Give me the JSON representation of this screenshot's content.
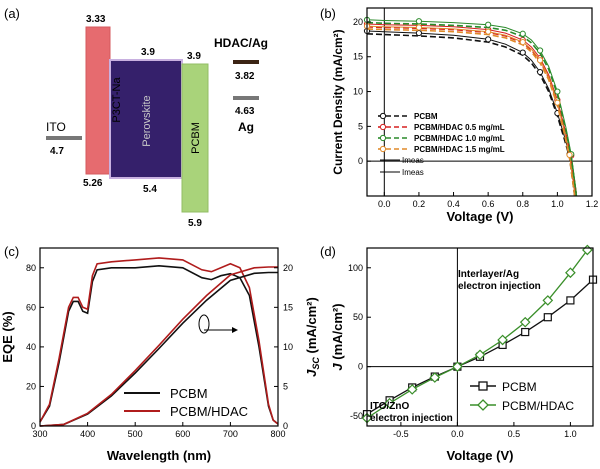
{
  "panels": {
    "a": {
      "label": "(a)",
      "levels": {
        "ito": {
          "name": "ITO",
          "value": "4.7"
        },
        "p3ct": {
          "name": "P3CT-Na",
          "top": "3.33",
          "bottom": "5.26"
        },
        "perovskite": {
          "name": "Perovskite",
          "top": "3.9",
          "bottom": "5.4"
        },
        "pcbm": {
          "name": "PCBM",
          "top": "3.9",
          "bottom": "5.9"
        },
        "hdac": {
          "name": "HDAC/Ag",
          "value": "3.82"
        },
        "ag": {
          "name": "Ag",
          "value": "4.63"
        }
      },
      "colors": {
        "p3ct": "#e66b6f",
        "perovskite": "#35206b",
        "pcbm": "#a9d37a",
        "electrode": "#777777",
        "hdac": "#3b2414"
      }
    },
    "b": {
      "label": "(b)",
      "xlabel": "Voltage (V)",
      "ylabel": "Current Density (mA/cm²)",
      "xticks": [
        "0.0",
        "0.2",
        "0.4",
        "0.6",
        "0.8",
        "1.0",
        "1.2"
      ],
      "yticks": [
        "0",
        "5",
        "10",
        "15",
        "20"
      ],
      "legend": [
        "PCBM",
        "PCBM/HDAC 0.5 mg/mL",
        "PCBM/HDAC 1.0 mg/mL",
        "PCBM/HDAC 1.5 mg/mL"
      ],
      "imeas": [
        "Imeas",
        "Imeas"
      ]
    },
    "c": {
      "label": "(c)",
      "xlabel": "Wavelength (nm)",
      "ylabel_left": "EQE (%)",
      "ylabel_right": "J",
      "ylabel_right_sub": "SC",
      "ylabel_right_unit": " (mA/cm²)",
      "xticks": [
        "300",
        "400",
        "500",
        "600",
        "700",
        "800"
      ],
      "yticks_left": [
        "0",
        "20",
        "40",
        "60",
        "80"
      ],
      "yticks_right": [
        "0",
        "5",
        "10",
        "15",
        "20"
      ],
      "legend": [
        "PCBM",
        "PCBM/HDAC"
      ]
    },
    "d": {
      "label": "(d)",
      "xlabel": "Voltage (V)",
      "ylabel": "J",
      "ylabel_unit": " (mA/cm²)",
      "xticks": [
        "-0.5",
        "0.0",
        "0.5",
        "1.0"
      ],
      "yticks": [
        "-50",
        "0",
        "50",
        "100"
      ],
      "annot_top": [
        "Interlayer/Ag",
        "electron injection"
      ],
      "annot_bottom": [
        "ITO/ZnO",
        "electron injection"
      ],
      "legend": [
        "PCBM",
        "PCBM/HDAC"
      ]
    }
  },
  "chart_data": [
    {
      "type": "line",
      "panel": "b",
      "xlim": [
        -0.1,
        1.2
      ],
      "ylim": [
        -5,
        22
      ],
      "series": [
        {
          "name": "PCBM",
          "color": "#111111",
          "dash": "dashed",
          "x": [
            -0.1,
            0,
            0.2,
            0.4,
            0.6,
            0.7,
            0.8,
            0.85,
            0.9,
            0.95,
            1.0,
            1.04,
            1.07,
            1.1
          ],
          "y": [
            18.3,
            18.2,
            18.0,
            17.7,
            17.1,
            16.4,
            15.2,
            14.1,
            12.4,
            10.0,
            6.5,
            3.2,
            0.6,
            -5
          ]
        },
        {
          "name": "PCBM/HDAC 0.5 mg/mL",
          "color": "#d62020",
          "dash": "dashed",
          "x": [
            -0.1,
            0,
            0.2,
            0.4,
            0.6,
            0.7,
            0.8,
            0.85,
            0.9,
            0.95,
            1.0,
            1.05,
            1.08,
            1.11
          ],
          "y": [
            19.3,
            19.2,
            19.1,
            18.9,
            18.5,
            18.0,
            17.0,
            16.0,
            14.4,
            12.0,
            8.4,
            3.6,
            0.4,
            -5
          ]
        },
        {
          "name": "PCBM/HDAC 1.0 mg/mL",
          "color": "#2a8a2a",
          "dash": "dashed",
          "x": [
            -0.1,
            0,
            0.2,
            0.4,
            0.6,
            0.7,
            0.8,
            0.85,
            0.9,
            0.95,
            1.0,
            1.05,
            1.08,
            1.11
          ],
          "y": [
            19.9,
            19.8,
            19.7,
            19.5,
            19.2,
            18.8,
            17.9,
            17.0,
            15.5,
            13.2,
            9.6,
            4.4,
            0.6,
            -5
          ]
        },
        {
          "name": "PCBM/HDAC 1.5 mg/mL",
          "color": "#e08a2a",
          "dash": "dashed",
          "x": [
            -0.1,
            0,
            0.2,
            0.4,
            0.6,
            0.7,
            0.8,
            0.85,
            0.9,
            0.95,
            1.0,
            1.04,
            1.07,
            1.1
          ],
          "y": [
            19.0,
            18.9,
            18.8,
            18.6,
            18.2,
            17.7,
            16.7,
            15.7,
            14.1,
            11.7,
            8.0,
            4.0,
            0.5,
            -5
          ]
        }
      ]
    },
    {
      "type": "line",
      "panel": "c",
      "xlim": [
        300,
        800
      ],
      "ylim_left": [
        0,
        90
      ],
      "ylim_right": [
        0,
        22.5
      ],
      "series": [
        {
          "name": "PCBM",
          "axis": "left",
          "color": "#111111",
          "x": [
            300,
            320,
            340,
            360,
            370,
            380,
            390,
            400,
            410,
            420,
            450,
            500,
            550,
            600,
            640,
            660,
            680,
            700,
            720,
            740,
            760,
            780,
            790,
            800
          ],
          "y": [
            2,
            10,
            32,
            58,
            63,
            63,
            58,
            57,
            73,
            79,
            80,
            80,
            81,
            80,
            75,
            74,
            76,
            77,
            75,
            66,
            40,
            10,
            3,
            1
          ]
        },
        {
          "name": "PCBM/HDAC",
          "axis": "left",
          "color": "#b01c1c",
          "x": [
            300,
            320,
            340,
            360,
            370,
            380,
            390,
            400,
            410,
            420,
            450,
            500,
            550,
            600,
            640,
            660,
            680,
            700,
            720,
            740,
            760,
            780,
            790,
            800
          ],
          "y": [
            2,
            11,
            34,
            60,
            65,
            65,
            60,
            59,
            76,
            82,
            83,
            84,
            85,
            84,
            79,
            78,
            80,
            82,
            80,
            70,
            43,
            11,
            3,
            1
          ]
        },
        {
          "name": "PCBM Jsc",
          "axis": "right",
          "color": "#111111",
          "x": [
            300,
            350,
            400,
            450,
            500,
            550,
            600,
            650,
            700,
            750,
            780,
            800
          ],
          "y": [
            0,
            0.2,
            1.5,
            3.8,
            6.7,
            9.8,
            13.0,
            15.9,
            18.4,
            19.3,
            19.4,
            19.4
          ]
        },
        {
          "name": "PCBM/HDAC Jsc",
          "axis": "right",
          "color": "#b01c1c",
          "x": [
            300,
            350,
            400,
            450,
            500,
            550,
            600,
            650,
            700,
            750,
            780,
            800
          ],
          "y": [
            0,
            0.2,
            1.6,
            4.0,
            7.0,
            10.2,
            13.5,
            16.5,
            19.1,
            20.0,
            20.1,
            20.1
          ]
        }
      ]
    },
    {
      "type": "line",
      "panel": "d",
      "xlim": [
        -0.8,
        1.2
      ],
      "ylim": [
        -60,
        120
      ],
      "series": [
        {
          "name": "PCBM",
          "color": "#111111",
          "marker": "square",
          "x": [
            -0.8,
            -0.6,
            -0.4,
            -0.2,
            0,
            0.2,
            0.4,
            0.6,
            0.8,
            1.0,
            1.2
          ],
          "y": [
            -48,
            -34,
            -21,
            -10,
            0,
            10,
            22,
            35,
            50,
            67,
            88
          ]
        },
        {
          "name": "PCBM/HDAC",
          "color": "#3a8f2a",
          "marker": "diamond",
          "x": [
            -0.8,
            -0.6,
            -0.4,
            -0.2,
            0,
            0.2,
            0.4,
            0.6,
            0.8,
            1.0,
            1.15
          ],
          "y": [
            -52,
            -37,
            -23,
            -11,
            0,
            12,
            27,
            45,
            67,
            95,
            118
          ]
        }
      ]
    }
  ]
}
